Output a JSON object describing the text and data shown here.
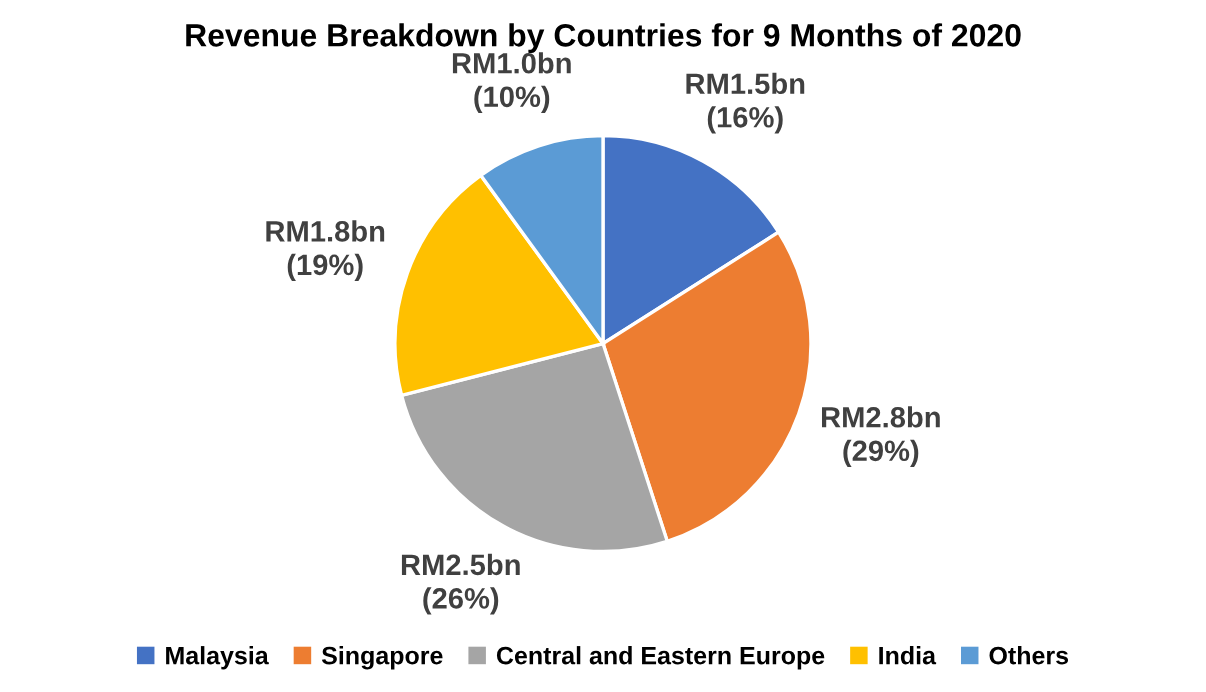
{
  "chart_data": {
    "type": "pie",
    "title": "Revenue Breakdown by Countries for 9 Months of 2020",
    "categories": [
      "Malaysia",
      "Singapore",
      "Central and Eastern Europe",
      "India",
      "Others"
    ],
    "values": [
      16,
      29,
      26,
      19,
      10
    ],
    "colors": [
      "#4472c4",
      "#ed7d31",
      "#a5a5a5",
      "#ffc000",
      "#5b9bd5"
    ],
    "value_labels": [
      "RM1.5bn\n(16%)",
      "RM2.8bn\n(29%)",
      "RM2.5bn\n(26%)",
      "RM1.8bn\n(19%)",
      "RM1.0bn\n(10%)"
    ],
    "legend": "bottom"
  }
}
